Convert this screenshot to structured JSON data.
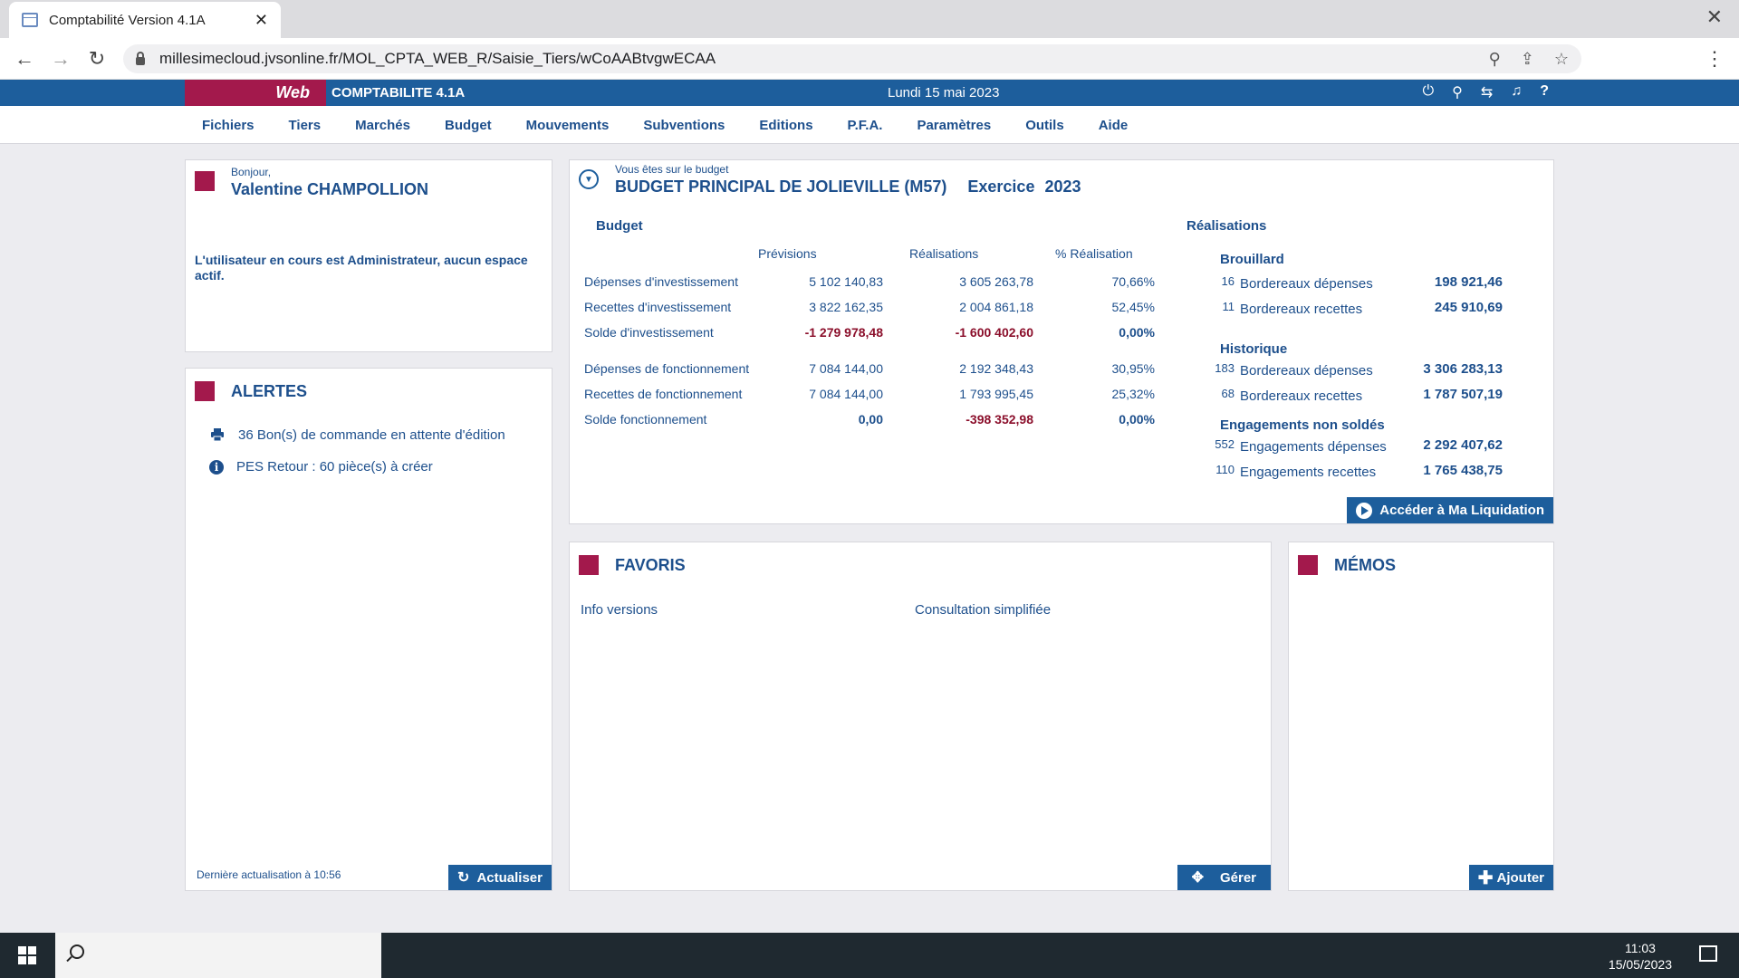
{
  "browser": {
    "tab_title": "Comptabilité Version 4.1A",
    "url": "millesimecloud.jvsonline.fr/MOL_CPTA_WEB_R/Saisie_Tiers/wCoAABtvgwECAA"
  },
  "header": {
    "brand": "Web",
    "title": "COMPTABILITE 4.1A",
    "date": "Lundi 15 mai 2023"
  },
  "menu": [
    "Fichiers",
    "Tiers",
    "Marchés",
    "Budget",
    "Mouvements",
    "Subventions",
    "Editions",
    "P.F.A.",
    "Paramètres",
    "Outils",
    "Aide"
  ],
  "user": {
    "greeting": "Bonjour,",
    "name": "Valentine CHAMPOLLION",
    "message": "L'utilisateur en cours est Administrateur, aucun espace actif."
  },
  "alerts": {
    "title": "ALERTES",
    "items": [
      {
        "icon": "printer-icon",
        "text": "36 Bon(s) de commande en attente d'édition"
      },
      {
        "icon": "info-icon",
        "text": "PES Retour : 60 pièce(s) à créer"
      }
    ],
    "last_update": "Dernière actualisation à 10:56",
    "refresh_label": "Actualiser"
  },
  "budget": {
    "subtitle": "Vous êtes sur le budget",
    "title": "BUDGET PRINCIPAL DE JOLIEVILLE (M57)",
    "exercise_label": "Exercice",
    "exercise_year": "2023",
    "budget_heading": "Budget",
    "col_previsions": "Prévisions",
    "col_realisations": "Réalisations",
    "col_pct": "% Réalisation",
    "rows": [
      {
        "label": "Dépenses d'investissement",
        "prev": "5 102 140,83",
        "real": "3 605 263,78",
        "pct": "70,66%"
      },
      {
        "label": "Recettes d'investissement",
        "prev": "3 822 162,35",
        "real": "2 004 861,18",
        "pct": "52,45%"
      },
      {
        "label": "Solde d'investissement",
        "prev": "-1 279 978,48",
        "real": "-1 600 402,60",
        "pct": "0,00%"
      },
      {
        "label": "Dépenses de fonctionnement",
        "prev": "7 084 144,00",
        "real": "2 192 348,43",
        "pct": "30,95%"
      },
      {
        "label": "Recettes de fonctionnement",
        "prev": "7 084 144,00",
        "real": "1 793 995,45",
        "pct": "25,32%"
      },
      {
        "label": "Solde fonctionnement",
        "prev": "0,00",
        "real": "-398 352,98",
        "pct": "0,00%"
      }
    ],
    "realisations_heading": "Réalisations",
    "brouillard": {
      "title": "Brouillard",
      "items": [
        {
          "count": "16",
          "label": "Bordereaux dépenses",
          "value": "198 921,46"
        },
        {
          "count": "11",
          "label": "Bordereaux recettes",
          "value": "245 910,69"
        }
      ]
    },
    "historique": {
      "title": "Historique",
      "items": [
        {
          "count": "183",
          "label": "Bordereaux dépenses",
          "value": "3 306 283,13"
        },
        {
          "count": "68",
          "label": "Bordereaux recettes",
          "value": "1 787 507,19"
        }
      ]
    },
    "engagements": {
      "title": "Engagements non soldés",
      "items": [
        {
          "count": "552",
          "label": "Engagements dépenses",
          "value": "2 292 407,62"
        },
        {
          "count": "110",
          "label": "Engagements recettes",
          "value": "1 765 438,75"
        }
      ]
    },
    "liquidation_label": "Accéder à Ma Liquidation"
  },
  "favoris": {
    "title": "FAVORIS",
    "links": [
      "Info versions",
      "Consultation simplifiée"
    ],
    "manage_label": "Gérer"
  },
  "memos": {
    "title": "MÉMOS",
    "add_label": "Ajouter"
  },
  "taskbar": {
    "time": "11:03",
    "date": "15/05/2023"
  },
  "colors": {
    "accent": "#1d5e9c",
    "brand": "#a3194c",
    "negative": "#8b0f2b"
  }
}
